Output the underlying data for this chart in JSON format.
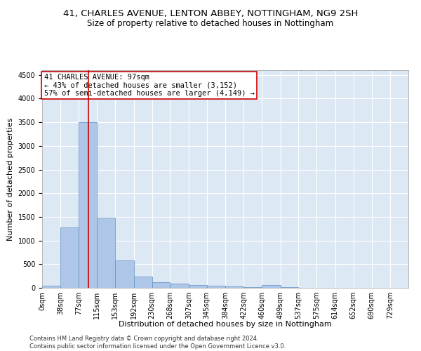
{
  "title": "41, CHARLES AVENUE, LENTON ABBEY, NOTTINGHAM, NG9 2SH",
  "subtitle": "Size of property relative to detached houses in Nottingham",
  "xlabel": "Distribution of detached houses by size in Nottingham",
  "ylabel": "Number of detached properties",
  "bar_color": "#aec6e8",
  "bar_edge_color": "#6090c0",
  "background_color": "#dde8f5",
  "grid_color": "#ffffff",
  "annotation_box_color": "#cc0000",
  "annotation_text_line1": "41 CHARLES AVENUE: 97sqm",
  "annotation_text_line2": "← 43% of detached houses are smaller (3,152)",
  "annotation_text_line3": "57% of semi-detached houses are larger (4,149) →",
  "vline_x": 97,
  "vline_color": "#cc0000",
  "footer_line1": "Contains HM Land Registry data © Crown copyright and database right 2024.",
  "footer_line2": "Contains public sector information licensed under the Open Government Licence v3.0.",
  "bin_edges": [
    0,
    38,
    77,
    115,
    153,
    192,
    230,
    268,
    307,
    345,
    384,
    422,
    460,
    499,
    537,
    575,
    614,
    652,
    690,
    729,
    767
  ],
  "bin_heights": [
    45,
    1270,
    3500,
    1480,
    575,
    240,
    115,
    85,
    65,
    45,
    30,
    10,
    55,
    10,
    0,
    0,
    0,
    0,
    0,
    0
  ],
  "ylim": [
    0,
    4600
  ],
  "yticks": [
    0,
    500,
    1000,
    1500,
    2000,
    2500,
    3000,
    3500,
    4000,
    4500
  ],
  "title_fontsize": 9.5,
  "subtitle_fontsize": 8.5,
  "xlabel_fontsize": 8,
  "ylabel_fontsize": 8,
  "tick_fontsize": 7,
  "annotation_fontsize": 7.5,
  "footer_fontsize": 6
}
